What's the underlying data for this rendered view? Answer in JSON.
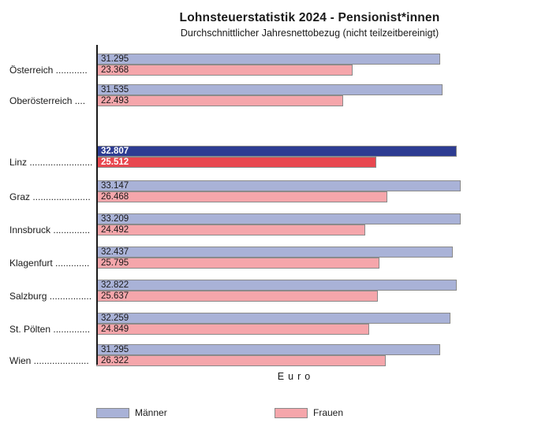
{
  "title": "Lohnsteuerstatistik 2024 - Pensionist*innen",
  "subtitle": "Durchschnittlicher Jahresnettobezug (nicht teilzeitbereinigt)",
  "xlabel": "Euro",
  "legend": {
    "men_label": "Männer",
    "women_label": "Frauen"
  },
  "colors": {
    "men_fill": "#a9b2d7",
    "women_fill": "#f5a6ab",
    "men_highlight_fill": "#2d3c92",
    "women_highlight_fill": "#e8474f",
    "bar_border": "#8a8a8a",
    "axis": "#1a1a1a",
    "value_text": "#1a1a1a",
    "highlight_value_text": "#ffffff"
  },
  "chart_data": {
    "type": "bar",
    "orientation": "horizontal",
    "title": "Lohnsteuerstatistik 2024 - Pensionist*innen",
    "subtitle": "Durchschnittlicher Jahresnettobezug (nicht teilzeitbereinigt)",
    "xlabel": "Euro",
    "x_range": [
      0,
      33209
    ],
    "grid": false,
    "legend_position": "bottom",
    "series_names": [
      "Männer",
      "Frauen"
    ],
    "highlighted_category": "Linz",
    "rows": [
      {
        "category": "Österreich",
        "leader_dots": "............",
        "men": 31295,
        "women": 23368,
        "men_label": "31.295",
        "women_label": "23.368",
        "highlight": false
      },
      {
        "category": "Oberösterreich",
        "leader_dots": "....",
        "men": 31535,
        "women": 22493,
        "men_label": "31.535",
        "women_label": "22.493",
        "highlight": false
      },
      {
        "category": "Linz",
        "leader_dots": "........................",
        "men": 32807,
        "women": 25512,
        "men_label": "32.807",
        "women_label": "25.512",
        "highlight": true
      },
      {
        "category": "Graz",
        "leader_dots": "......................",
        "men": 33147,
        "women": 26468,
        "men_label": "33.147",
        "women_label": "26.468",
        "highlight": false
      },
      {
        "category": "Innsbruck",
        "leader_dots": "..............",
        "men": 33209,
        "women": 24492,
        "men_label": "33.209",
        "women_label": "24.492",
        "highlight": false
      },
      {
        "category": "Klagenfurt",
        "leader_dots": ".............",
        "men": 32437,
        "women": 25795,
        "men_label": "32.437",
        "women_label": "25.795",
        "highlight": false
      },
      {
        "category": "Salzburg",
        "leader_dots": "................",
        "men": 32822,
        "women": 25637,
        "men_label": "32.822",
        "women_label": "25.637",
        "highlight": false
      },
      {
        "category": "St. Pölten",
        "leader_dots": "..............",
        "men": 32259,
        "women": 24849,
        "men_label": "32.259",
        "women_label": "24.849",
        "highlight": false
      },
      {
        "category": "Wien",
        "leader_dots": ".....................",
        "men": 31295,
        "women": 26322,
        "men_label": "31.295",
        "women_label": "26.322",
        "highlight": false
      }
    ]
  }
}
